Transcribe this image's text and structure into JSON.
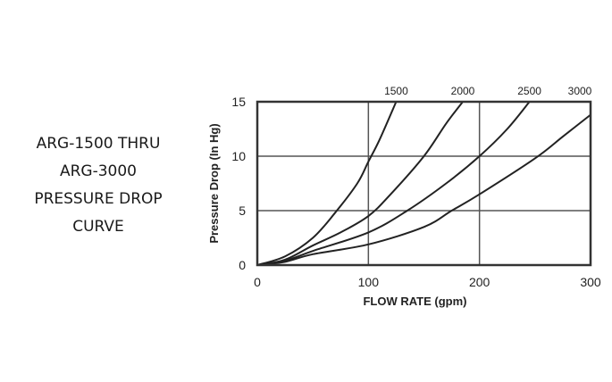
{
  "side_title": [
    "ARG-1500 THRU",
    "ARG-3000",
    "PRESSURE DROP",
    "CURVE"
  ],
  "chart_data": {
    "type": "line",
    "title": "ARG-1500 THRU ARG-3000 PRESSURE DROP CURVE",
    "xlabel": "FLOW RATE (gpm)",
    "ylabel": "Pressure Drop (In Hg)",
    "xlim": [
      0,
      300
    ],
    "ylim": [
      0,
      15
    ],
    "xticks": [
      "0",
      "100",
      "200",
      "300"
    ],
    "yticks": [
      "0",
      "5",
      "10",
      "15"
    ],
    "grid": true,
    "line_color": "#222222",
    "series": [
      {
        "name": "1500",
        "x": [
          0,
          25,
          50,
          70,
          90,
          100,
          110,
          125
        ],
        "y": [
          0,
          0.8,
          2.5,
          4.8,
          7.5,
          9.5,
          11.5,
          15
        ]
      },
      {
        "name": "2000",
        "x": [
          0,
          25,
          50,
          75,
          100,
          120,
          150,
          170,
          185
        ],
        "y": [
          0,
          0.5,
          1.8,
          3.0,
          4.5,
          6.5,
          10,
          13,
          15
        ]
      },
      {
        "name": "2500",
        "x": [
          0,
          25,
          50,
          100,
          135,
          170,
          200,
          225,
          245
        ],
        "y": [
          0,
          0.4,
          1.3,
          3.0,
          5.0,
          7.5,
          10,
          12.5,
          15
        ]
      },
      {
        "name": "3000",
        "x": [
          0,
          25,
          50,
          100,
          150,
          175,
          200,
          250,
          275,
          300
        ],
        "y": [
          0,
          0.3,
          1.0,
          1.9,
          3.5,
          5.0,
          6.5,
          9.8,
          11.8,
          13.8
        ]
      }
    ]
  }
}
